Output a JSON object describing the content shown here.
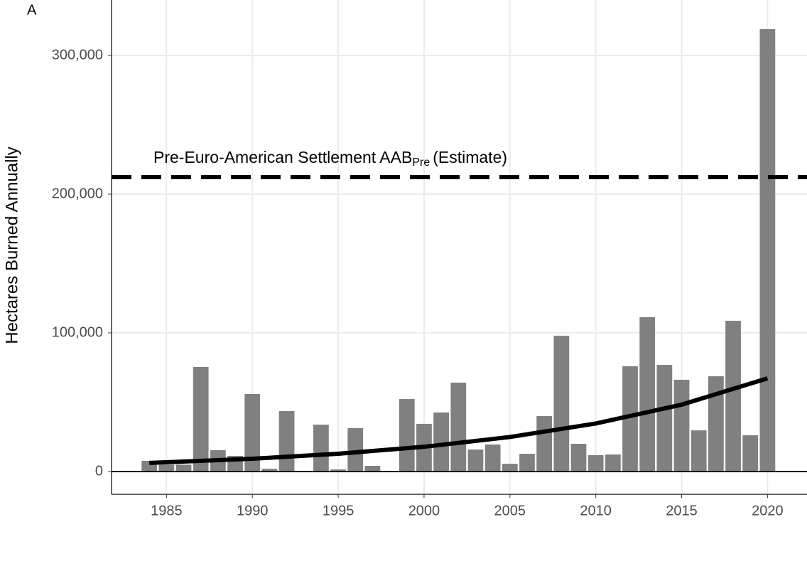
{
  "chart_data": {
    "type": "bar",
    "panel_label": "A",
    "ylabel": "Hectares Burned Annually",
    "categories": [
      1984,
      1985,
      1986,
      1987,
      1988,
      1989,
      1990,
      1991,
      1992,
      1993,
      1994,
      1995,
      1996,
      1997,
      1998,
      1999,
      2000,
      2001,
      2002,
      2003,
      2004,
      2005,
      2006,
      2007,
      2008,
      2009,
      2010,
      2011,
      2012,
      2013,
      2014,
      2015,
      2016,
      2017,
      2018,
      2019,
      2020
    ],
    "values": [
      7700,
      5000,
      5000,
      75400,
      15400,
      11300,
      55900,
      2000,
      43600,
      500,
      33800,
      1500,
      31300,
      4100,
      300,
      52300,
      34400,
      42600,
      64100,
      15900,
      19500,
      5600,
      12800,
      40000,
      97900,
      20000,
      11800,
      12300,
      75900,
      111300,
      76900,
      66200,
      29700,
      68700,
      108700,
      26200,
      319000
    ],
    "color": "#808080",
    "trend": {
      "x": [
        1984,
        1990,
        1995,
        2000,
        2005,
        2010,
        2015,
        2020
      ],
      "values": [
        6200,
        9220,
        12840,
        17870,
        24900,
        34660,
        48250,
        67200
      ],
      "color": "#000000"
    },
    "annotation": {
      "text": "Pre-Euro-American Settlement AAB",
      "subscript": "Pre",
      "suffix": "(Estimate)",
      "value": 212300
    },
    "xlim": [
      1981.8,
      2022.3
    ],
    "xticks": [
      1985,
      1990,
      1995,
      2000,
      2005,
      2010,
      2015,
      2020
    ],
    "ylim": [
      -16400,
      340000
    ],
    "yticks": [
      0,
      {
        "value": 100000,
        "label": "100,000"
      },
      {
        "value": 200000,
        "label": "200,000"
      },
      {
        "value": 300000,
        "label": "300,000"
      }
    ],
    "grid": true
  }
}
